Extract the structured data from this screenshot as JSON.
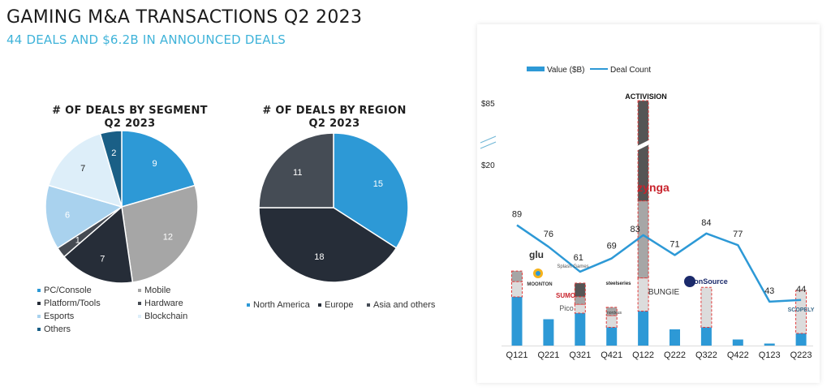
{
  "header": {
    "title": "GAMING M&A TRANSACTIONS Q2 2023",
    "subtitle": "44 DEALS AND $6.2B IN ANNOUNCED DEALS"
  },
  "chart_data": [
    {
      "type": "pie",
      "title": "# OF DEALS BY SEGMENT",
      "subtitle": "Q2 2023",
      "slices": [
        {
          "label": "PC/Console",
          "value": 9,
          "color": "#2d99d6",
          "text_color": "#ffffff"
        },
        {
          "label": "Mobile",
          "value": 12,
          "color": "#a6a6a6",
          "text_color": "#ffffff"
        },
        {
          "label": "Platform/Tools",
          "value": 7,
          "color": "#262d38",
          "text_color": "#ffffff"
        },
        {
          "label": "Hardware",
          "value": 1,
          "color": "#454a52",
          "text_color": "#ffffff"
        },
        {
          "label": "Esports",
          "value": 6,
          "color": "#a9d2ee",
          "text_color": "#ffffff"
        },
        {
          "label": "Blockchain",
          "value": 7,
          "color": "#ddeef9",
          "text_color": "#222222"
        },
        {
          "label": "Others",
          "value": 2,
          "color": "#1a5f86",
          "text_color": "#ffffff"
        }
      ],
      "legend": [
        "PC/Console",
        "Mobile",
        "Platform/Tools",
        "Hardware",
        "Esports",
        "Blockchain",
        "Others"
      ],
      "legend_placement": "bottom"
    },
    {
      "type": "pie",
      "title": "# OF DEALS BY REGION",
      "subtitle": "Q2 2023",
      "slices": [
        {
          "label": "North America",
          "value": 15,
          "color": "#2d99d6",
          "text_color": "#ffffff"
        },
        {
          "label": "Europe",
          "value": 18,
          "color": "#262d38",
          "text_color": "#ffffff"
        },
        {
          "label": "Asia and others",
          "value": 11,
          "color": "#454c55",
          "text_color": "#ffffff"
        }
      ],
      "legend": [
        "North America",
        "Europe",
        "Asia and others"
      ],
      "legend_placement": "bottom"
    },
    {
      "type": "bar",
      "title": "",
      "legend": [
        "Value ($B)",
        "Deal Count"
      ],
      "legend_placement": "top",
      "categories": [
        "Q121",
        "Q221",
        "Q321",
        "Q421",
        "Q122",
        "Q222",
        "Q322",
        "Q422",
        "Q123",
        "Q223"
      ],
      "y_tick_labels": [
        "$85",
        "$20"
      ],
      "y_axis_break": true,
      "series": [
        {
          "name": "Value ($B)",
          "type": "bar",
          "color": "#2d99d6",
          "values_relative": [
            0.24,
            0.13,
            0.16,
            0.09,
            0.17,
            0.08,
            0.09,
            0.03,
            0.01,
            0.06
          ]
        },
        {
          "name": "Deal Count",
          "type": "line",
          "color": "#2d99d6",
          "values": [
            89,
            76,
            61,
            69,
            83,
            71,
            84,
            77,
            43,
            44
          ]
        }
      ],
      "highlight_deals": [
        {
          "quarter": "Q121",
          "segments": [
            {
              "label": "Moonton",
              "fill": "#dcdcdc",
              "size": 0.26
            },
            {
              "label": "Glu",
              "fill": "#a6a6a6",
              "size": 0.18
            }
          ]
        },
        {
          "quarter": "Q321",
          "segments": [
            {
              "label": "Pico",
              "fill": "#dcdcdc",
              "size": 0.15
            },
            {
              "label": "Sumo Digital",
              "fill": "#a6a6a6",
              "size": 0.13
            },
            {
              "label": "Splash Games",
              "fill": "#555555",
              "size": 0.23
            }
          ]
        },
        {
          "quarter": "Q421",
          "segments": [
            {
              "label": "Nordeus",
              "fill": "#dcdcdc",
              "size": 0.2
            },
            {
              "label": "SteelSeries",
              "fill": "#a6a6a6",
              "size": 0.14
            }
          ]
        },
        {
          "quarter": "Q122",
          "segments": [
            {
              "label": "Bungie",
              "fill": "#dcdcdc",
              "size": 0.43
            },
            {
              "label": "Zynga",
              "fill": "#a6a6a6",
              "size": 1.0
            },
            {
              "label": "Activision",
              "fill": "#555555",
              "size": 1.3
            }
          ]
        },
        {
          "quarter": "Q322",
          "segments": [
            {
              "label": "ironSource",
              "fill": "#dcdcdc",
              "size": 0.68
            }
          ]
        },
        {
          "quarter": "Q223",
          "segments": [
            {
              "label": "Scopely",
              "fill": "#dcdcdc",
              "size": 0.73
            }
          ]
        }
      ],
      "logo_labels": [
        "ACTIVISION",
        "zynga",
        "glu",
        "MOONTON",
        "Splash Games",
        "SUMO",
        "Pico",
        "steelseries",
        "nordeus",
        "BUNGIE",
        "ironSource",
        "SCOPELY"
      ]
    }
  ]
}
